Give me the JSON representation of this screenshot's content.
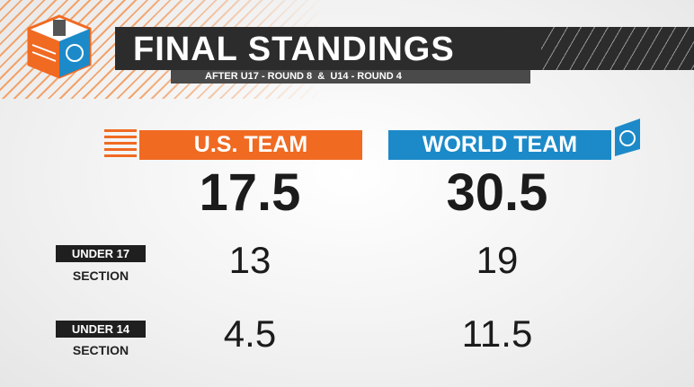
{
  "header": {
    "title": "FINAL STANDINGS",
    "subtitle": "AFTER U17 - ROUND 8  &  U14 - ROUND 4"
  },
  "teams": [
    {
      "name": "U.S. TEAM",
      "total": 17.5
    },
    {
      "name": "WORLD TEAM",
      "total": 30.5
    }
  ],
  "sections": [
    {
      "label": "UNDER 17",
      "sublabel": "SECTION",
      "scores": [
        13,
        19
      ]
    },
    {
      "label": "UNDER 14",
      "sublabel": "SECTION",
      "scores": [
        4.5,
        11.5
      ]
    }
  ]
}
